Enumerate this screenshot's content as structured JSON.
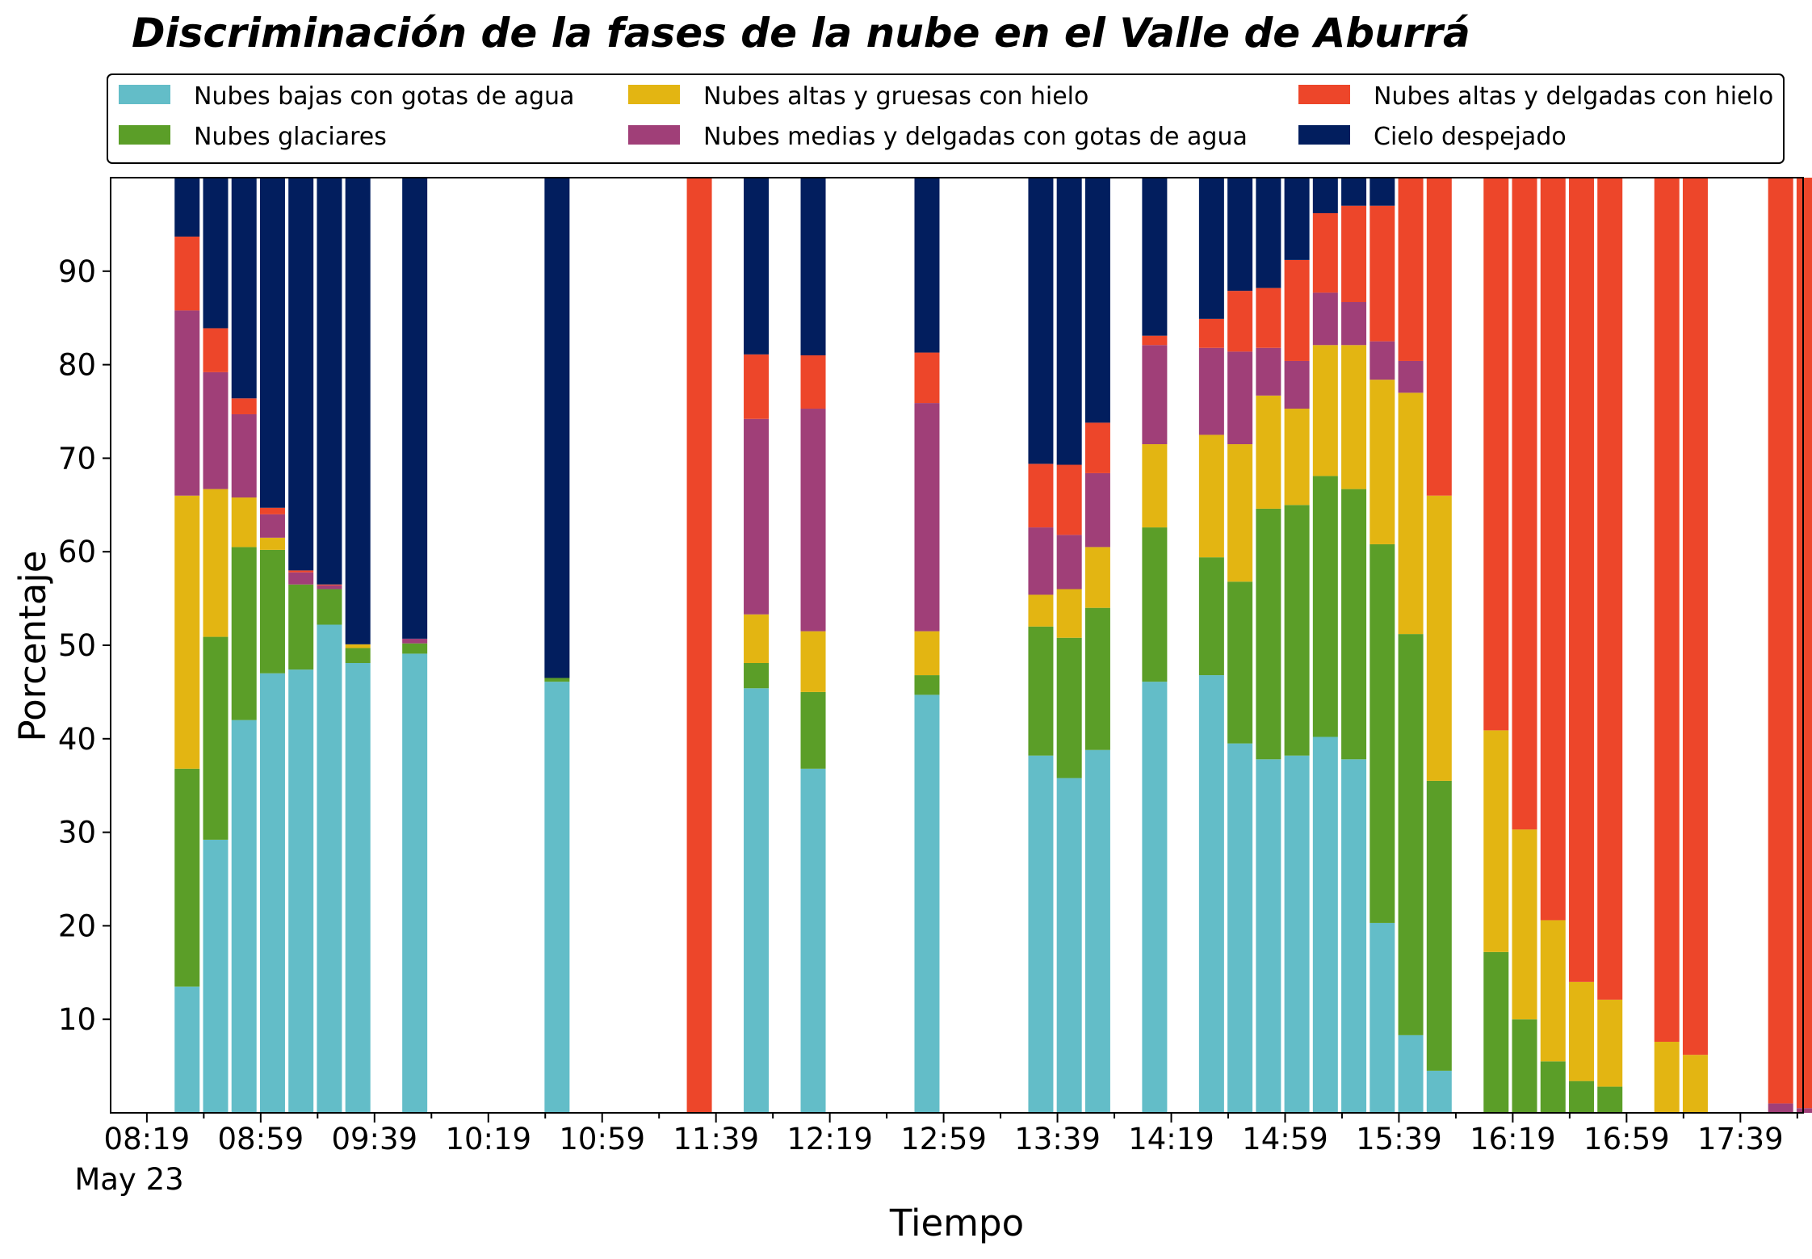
{
  "chart_data": {
    "type": "bar",
    "stacked": true,
    "title": "Discriminación de la fases de la nube en el Valle de Aburrá",
    "xlabel": "Tiempo",
    "ylabel": "Porcentaje",
    "ylim": [
      0,
      100
    ],
    "yticks": [
      10,
      20,
      30,
      40,
      50,
      60,
      70,
      80,
      90
    ],
    "xticks": [
      {
        "label": "08:19",
        "slot": 0
      },
      {
        "label": "08:59",
        "slot": 4
      },
      {
        "label": "09:39",
        "slot": 8
      },
      {
        "label": "10:19",
        "slot": 12
      },
      {
        "label": "10:59",
        "slot": 16
      },
      {
        "label": "11:39",
        "slot": 20
      },
      {
        "label": "12:19",
        "slot": 24
      },
      {
        "label": "12:59",
        "slot": 28
      },
      {
        "label": "13:39",
        "slot": 32
      },
      {
        "label": "14:19",
        "slot": 36
      },
      {
        "label": "14:59",
        "slot": 40
      },
      {
        "label": "15:39",
        "slot": 44
      },
      {
        "label": "16:19",
        "slot": 48
      },
      {
        "label": "16:59",
        "slot": 52
      },
      {
        "label": "17:39",
        "slot": 56
      }
    ],
    "date_label": "May 23",
    "grid": false,
    "legend_position": "top",
    "slot_count": 59,
    "series": [
      {
        "name": "Nubes bajas con gotas de agua",
        "color": "#63bdc8"
      },
      {
        "name": "Nubes glaciares",
        "color": "#5b9e28"
      },
      {
        "name": "Nubes altas y gruesas con hielo",
        "color": "#e3b512"
      },
      {
        "name": "Nubes medias y delgadas con gotas de agua",
        "color": "#a03f78"
      },
      {
        "name": "Nubes altas y delgadas con hielo",
        "color": "#ed462a"
      },
      {
        "name": "Cielo despejado",
        "color": "#021e5e"
      }
    ],
    "bars": [
      {
        "slot": 1,
        "values": [
          13.5,
          23.3,
          29.2,
          19.8,
          7.9,
          6.3
        ]
      },
      {
        "slot": 2,
        "values": [
          29.2,
          21.7,
          15.8,
          12.5,
          4.7,
          16.1
        ]
      },
      {
        "slot": 3,
        "values": [
          42.0,
          18.5,
          5.3,
          8.9,
          1.7,
          23.6
        ]
      },
      {
        "slot": 4,
        "values": [
          47.0,
          13.2,
          1.3,
          2.5,
          0.7,
          35.3
        ]
      },
      {
        "slot": 5,
        "values": [
          47.4,
          9.1,
          0.0,
          1.3,
          0.2,
          42.0
        ]
      },
      {
        "slot": 6,
        "values": [
          52.2,
          3.8,
          0.0,
          0.4,
          0.1,
          43.5
        ]
      },
      {
        "slot": 7,
        "values": [
          48.1,
          1.6,
          0.4,
          0.0,
          0.0,
          49.9
        ]
      },
      {
        "slot": 9,
        "values": [
          49.1,
          1.1,
          0.0,
          0.5,
          0.0,
          49.3
        ]
      },
      {
        "slot": 14,
        "values": [
          46.1,
          0.4,
          0.0,
          0.0,
          0.0,
          53.5
        ]
      },
      {
        "slot": 19,
        "values": [
          0.0,
          0.0,
          0.0,
          0.0,
          100.0,
          0.0
        ]
      },
      {
        "slot": 21,
        "values": [
          45.4,
          2.7,
          5.2,
          20.9,
          6.9,
          18.9
        ]
      },
      {
        "slot": 23,
        "values": [
          36.8,
          8.2,
          6.5,
          23.8,
          5.7,
          19.0
        ]
      },
      {
        "slot": 27,
        "values": [
          44.7,
          2.1,
          4.7,
          24.4,
          5.4,
          18.7
        ]
      },
      {
        "slot": 31,
        "values": [
          38.2,
          13.8,
          3.4,
          7.2,
          6.8,
          30.6
        ]
      },
      {
        "slot": 32,
        "values": [
          35.8,
          15.0,
          5.2,
          5.8,
          7.5,
          30.7
        ]
      },
      {
        "slot": 33,
        "values": [
          38.8,
          15.2,
          6.5,
          7.9,
          5.4,
          26.2
        ]
      },
      {
        "slot": 35,
        "values": [
          46.1,
          16.5,
          8.9,
          10.6,
          1.0,
          16.9
        ]
      },
      {
        "slot": 37,
        "values": [
          46.8,
          12.6,
          13.1,
          9.3,
          3.1,
          15.1
        ]
      },
      {
        "slot": 38,
        "values": [
          39.5,
          17.3,
          14.7,
          9.9,
          6.5,
          12.1
        ]
      },
      {
        "slot": 39,
        "values": [
          37.8,
          26.8,
          12.1,
          5.1,
          6.4,
          11.8
        ]
      },
      {
        "slot": 40,
        "values": [
          38.2,
          26.8,
          10.3,
          5.1,
          10.8,
          8.8
        ]
      },
      {
        "slot": 41,
        "values": [
          40.2,
          27.9,
          14.0,
          5.6,
          8.5,
          3.8
        ]
      },
      {
        "slot": 42,
        "values": [
          37.8,
          28.9,
          15.4,
          4.6,
          10.3,
          3.0
        ]
      },
      {
        "slot": 43,
        "values": [
          20.3,
          40.5,
          17.6,
          4.1,
          14.5,
          3.0
        ]
      },
      {
        "slot": 44,
        "values": [
          8.3,
          42.9,
          25.8,
          3.4,
          19.9,
          0.7
        ]
      },
      {
        "slot": 45,
        "values": [
          4.5,
          31.0,
          30.5,
          0.0,
          34.3,
          0.5
        ]
      },
      {
        "slot": 47,
        "values": [
          0.0,
          17.2,
          23.7,
          0.0,
          59.1,
          0.0
        ]
      },
      {
        "slot": 48,
        "values": [
          0.0,
          10.0,
          20.3,
          0.0,
          69.7,
          0.0
        ]
      },
      {
        "slot": 49,
        "values": [
          0.0,
          5.5,
          15.1,
          0.0,
          79.4,
          0.0
        ]
      },
      {
        "slot": 50,
        "values": [
          0.0,
          3.4,
          10.6,
          0.0,
          86.0,
          0.0
        ]
      },
      {
        "slot": 51,
        "values": [
          0.0,
          2.8,
          9.3,
          0.0,
          87.9,
          0.0
        ]
      },
      {
        "slot": 53,
        "values": [
          0.0,
          0.0,
          7.6,
          0.0,
          92.4,
          0.0
        ]
      },
      {
        "slot": 54,
        "values": [
          0.0,
          0.0,
          6.2,
          0.0,
          93.8,
          0.0
        ]
      },
      {
        "slot": 57,
        "values": [
          0.0,
          0.0,
          0.0,
          1.0,
          99.0,
          0.0
        ]
      },
      {
        "slot": 58,
        "values": [
          0.0,
          0.0,
          0.0,
          0.5,
          99.5,
          0.0
        ]
      }
    ]
  }
}
